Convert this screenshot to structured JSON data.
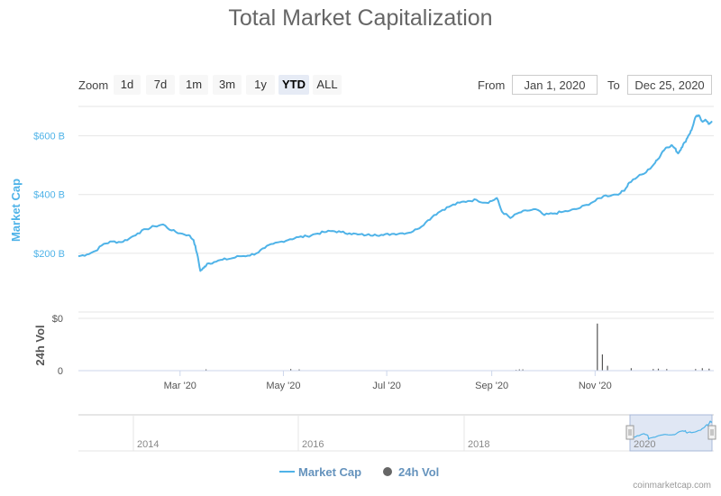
{
  "colors": {
    "market_cap": "#4fb3e8",
    "volume": "#555555",
    "navigator_fill": "#dbe3f2",
    "grid": "#e6e6e6",
    "axis": "#ccd6eb"
  },
  "zoom": {
    "label": "Zoom",
    "buttons": [
      {
        "label": "1d",
        "active": false
      },
      {
        "label": "7d",
        "active": false
      },
      {
        "label": "1m",
        "active": false
      },
      {
        "label": "3m",
        "active": false
      },
      {
        "label": "1y",
        "active": false
      },
      {
        "label": "YTD",
        "active": true
      },
      {
        "label": "ALL",
        "active": false
      }
    ]
  },
  "range": {
    "from_label": "From",
    "from_value": "Jan 1, 2020",
    "to_label": "To",
    "to_value": "Dec 25, 2020"
  },
  "chart_data": {
    "type": "line",
    "title": "Total Market Capitalization",
    "x_tick_labels": [
      "Mar '20",
      "May '20",
      "Jul '20",
      "Sep '20",
      "Nov '20"
    ],
    "x_tick_days": [
      60,
      121,
      182,
      244,
      305
    ],
    "x_range_days": [
      0,
      359
    ],
    "series": [
      {
        "name": "Market Cap",
        "unit": "B",
        "ylabel": "Market Cap",
        "ylim": [
          0,
          700
        ],
        "y_ticks": [
          200,
          400,
          600
        ],
        "y_tick_labels": [
          "$200 B",
          "$400 B",
          "$600 B"
        ],
        "points": [
          [
            0,
            190
          ],
          [
            5,
            196
          ],
          [
            10,
            208
          ],
          [
            15,
            232
          ],
          [
            20,
            240
          ],
          [
            25,
            238
          ],
          [
            30,
            250
          ],
          [
            35,
            268
          ],
          [
            40,
            282
          ],
          [
            45,
            292
          ],
          [
            50,
            298
          ],
          [
            55,
            278
          ],
          [
            60,
            268
          ],
          [
            65,
            262
          ],
          [
            68,
            245
          ],
          [
            70,
            200
          ],
          [
            72,
            140
          ],
          [
            74,
            150
          ],
          [
            76,
            165
          ],
          [
            80,
            170
          ],
          [
            85,
            178
          ],
          [
            90,
            182
          ],
          [
            95,
            190
          ],
          [
            100,
            192
          ],
          [
            105,
            200
          ],
          [
            110,
            218
          ],
          [
            115,
            232
          ],
          [
            120,
            240
          ],
          [
            125,
            248
          ],
          [
            130,
            255
          ],
          [
            135,
            258
          ],
          [
            140,
            266
          ],
          [
            145,
            272
          ],
          [
            150,
            276
          ],
          [
            155,
            272
          ],
          [
            160,
            268
          ],
          [
            165,
            264
          ],
          [
            170,
            262
          ],
          [
            175,
            264
          ],
          [
            180,
            262
          ],
          [
            185,
            266
          ],
          [
            190,
            268
          ],
          [
            195,
            270
          ],
          [
            200,
            282
          ],
          [
            205,
            305
          ],
          [
            210,
            330
          ],
          [
            215,
            348
          ],
          [
            220,
            362
          ],
          [
            225,
            372
          ],
          [
            230,
            378
          ],
          [
            235,
            382
          ],
          [
            240,
            372
          ],
          [
            244,
            378
          ],
          [
            247,
            388
          ],
          [
            250,
            342
          ],
          [
            255,
            320
          ],
          [
            260,
            338
          ],
          [
            265,
            345
          ],
          [
            270,
            350
          ],
          [
            275,
            330
          ],
          [
            280,
            335
          ],
          [
            285,
            340
          ],
          [
            290,
            345
          ],
          [
            295,
            352
          ],
          [
            300,
            365
          ],
          [
            305,
            378
          ],
          [
            310,
            395
          ],
          [
            315,
            398
          ],
          [
            320,
            405
          ],
          [
            323,
            420
          ],
          [
            325,
            440
          ],
          [
            330,
            460
          ],
          [
            335,
            475
          ],
          [
            340,
            505
          ],
          [
            342,
            520
          ],
          [
            345,
            548
          ],
          [
            347,
            560
          ],
          [
            350,
            568
          ],
          [
            352,
            558
          ],
          [
            354,
            540
          ],
          [
            356,
            560
          ],
          [
            358,
            578
          ],
          [
            360,
            600
          ],
          [
            362,
            620
          ],
          [
            364,
            660
          ],
          [
            366,
            670
          ],
          [
            368,
            650
          ],
          [
            370,
            655
          ],
          [
            372,
            640
          ],
          [
            374,
            650
          ]
        ]
      },
      {
        "name": "24h Vol",
        "unit": "B",
        "ylabel": "24h Vol",
        "y_tick_labels": [
          "$0",
          "0"
        ],
        "bars": [
          [
            75,
            1.5
          ],
          [
            125,
            2
          ],
          [
            130,
            1.5
          ],
          [
            258,
            1
          ],
          [
            260,
            1.5
          ],
          [
            262,
            1.5
          ],
          [
            306,
            58
          ],
          [
            309,
            20
          ],
          [
            312,
            6
          ],
          [
            326,
            3
          ],
          [
            339,
            2
          ],
          [
            342,
            2.5
          ],
          [
            347,
            2
          ],
          [
            364,
            2
          ],
          [
            368,
            3
          ],
          [
            372,
            2.5
          ]
        ],
        "bar_max": 60
      }
    ],
    "navigator": {
      "year_labels": [
        "2014",
        "2016",
        "2018",
        "2020"
      ]
    },
    "legend": [
      {
        "name": "Market Cap",
        "symbol": "line"
      },
      {
        "name": "24h Vol",
        "symbol": "circle"
      }
    ]
  },
  "footer": {
    "credit": "coinmarketcap.com"
  }
}
